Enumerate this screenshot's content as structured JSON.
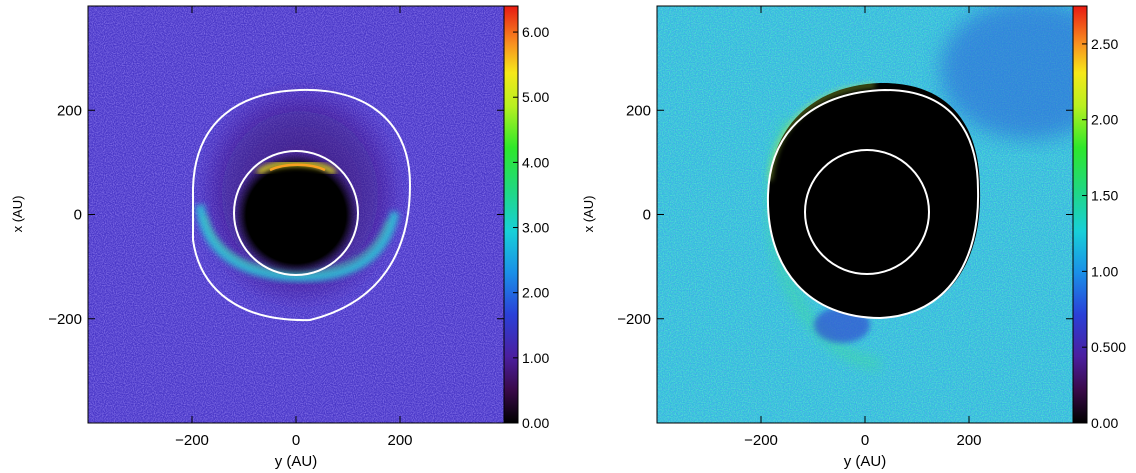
{
  "chart_data": [
    {
      "type": "heatmap",
      "title": "",
      "xlabel": "y (AU)",
      "ylabel": "x (AU)",
      "xlim": [
        -400,
        400
      ],
      "ylim": [
        -400,
        400
      ],
      "x_ticks": [
        -200,
        0,
        200
      ],
      "x_tick_labels": [
        "−200",
        "0",
        "200"
      ],
      "y_ticks": [
        200,
        0,
        -200
      ],
      "y_tick_labels": [
        "200",
        "0",
        "−200"
      ],
      "colorbar": {
        "min": 0,
        "max": 6.4,
        "ticks": [
          0,
          1,
          2,
          3,
          4,
          5,
          6
        ],
        "tick_labels": [
          "0.00",
          "1.00",
          "2.00",
          "3.00",
          "4.00",
          "5.00",
          "6.00"
        ]
      },
      "background_level": 1.3,
      "features": [
        {
          "name": "central cavity",
          "value": 0,
          "center": [
            0,
            0
          ],
          "radius": 120
        },
        {
          "name": "bright arc (north)",
          "value": 4.2,
          "center_y": 90,
          "span_x": [
            -60,
            60
          ]
        },
        {
          "name": "ring (south)",
          "value": 2.5,
          "radius": 185,
          "angle_range_deg": [
            190,
            350
          ]
        }
      ],
      "contours": [
        {
          "name": "inner circle",
          "center": [
            5,
            5
          ],
          "radius": 118
        },
        {
          "name": "outer contour",
          "center": [
            20,
            25
          ],
          "semi_axes": [
            205,
            215
          ]
        }
      ]
    },
    {
      "type": "heatmap",
      "title": "",
      "xlabel": "y (AU)",
      "ylabel": "x (AU)",
      "xlim": [
        -400,
        400
      ],
      "ylim": [
        -400,
        400
      ],
      "x_ticks": [
        -200,
        0,
        200
      ],
      "x_tick_labels": [
        "−200",
        "0",
        "200"
      ],
      "y_ticks": [
        200,
        0,
        -200
      ],
      "y_tick_labels": [
        "200",
        "0",
        "−200"
      ],
      "colorbar": {
        "min": 0,
        "max": 2.75,
        "ticks": [
          0,
          0.5,
          1.0,
          1.5,
          2.0,
          2.5
        ],
        "tick_labels": [
          "0.00",
          "0.500",
          "1.00",
          "1.50",
          "2.00",
          "2.50"
        ]
      },
      "background_level": 1.05,
      "features": [
        {
          "name": "central cavity",
          "value": 0,
          "center": [
            10,
            25
          ],
          "semi_axes": [
            205,
            225
          ]
        },
        {
          "name": "spiral arm (south-west)",
          "value": 1.3,
          "radius": 240
        }
      ],
      "contours": [
        {
          "name": "inner circle",
          "center": [
            5,
            5
          ],
          "radius": 118
        },
        {
          "name": "outer contour",
          "center": [
            10,
            25
          ],
          "semi_axes": [
            205,
            220
          ]
        }
      ]
    }
  ]
}
